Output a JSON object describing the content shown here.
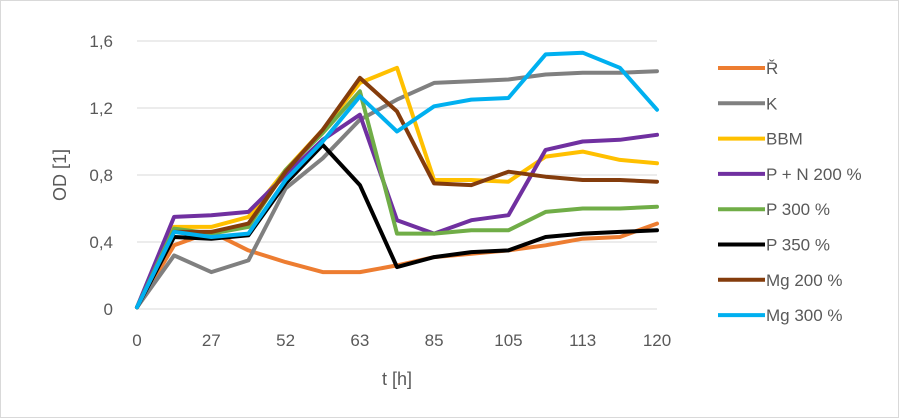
{
  "chart_data": {
    "type": "line",
    "title": "",
    "xlabel": "t [h]",
    "ylabel": "OD [1]",
    "ylim": [
      0,
      1.6
    ],
    "yticks": [
      "0",
      "0,4",
      "0,8",
      "1,2",
      "1,6"
    ],
    "x_tick_labels": [
      "0",
      "27",
      "52",
      "63",
      "85",
      "105",
      "113",
      "120"
    ],
    "grid": "horizontal",
    "legend_position": "right",
    "series": [
      {
        "name": "Ř",
        "color": "#ED7D31",
        "values": [
          0.01,
          0.38,
          0.46,
          0.35,
          0.28,
          0.22,
          0.22,
          0.26,
          0.31,
          0.33,
          0.35,
          0.38,
          0.42,
          0.43,
          0.51
        ]
      },
      {
        "name": "K",
        "color": "#808080",
        "values": [
          0.01,
          0.32,
          0.22,
          0.29,
          0.72,
          0.9,
          1.13,
          1.25,
          1.35,
          1.36,
          1.37,
          1.4,
          1.41,
          1.41,
          1.42
        ]
      },
      {
        "name": "BBM",
        "color": "#FFC000",
        "values": [
          0.01,
          0.49,
          0.49,
          0.55,
          0.83,
          1.07,
          1.35,
          1.44,
          0.77,
          0.77,
          0.76,
          0.91,
          0.94,
          0.89,
          0.87
        ]
      },
      {
        "name": "P + N 200 %",
        "color": "#7030A0",
        "values": [
          0.01,
          0.55,
          0.56,
          0.58,
          0.8,
          1.01,
          1.16,
          0.53,
          0.45,
          0.53,
          0.56,
          0.95,
          1.0,
          1.01,
          1.04
        ]
      },
      {
        "name": "P 300 %",
        "color": "#70AD47",
        "values": [
          0.01,
          0.48,
          0.45,
          0.49,
          0.83,
          1.05,
          1.3,
          0.45,
          0.45,
          0.47,
          0.47,
          0.58,
          0.6,
          0.6,
          0.61
        ]
      },
      {
        "name": "P 350 %",
        "color": "#000000",
        "values": [
          0.01,
          0.43,
          0.42,
          0.44,
          0.75,
          0.98,
          0.74,
          0.25,
          0.31,
          0.34,
          0.35,
          0.43,
          0.45,
          0.46,
          0.47
        ]
      },
      {
        "name": "Mg 200 %",
        "color": "#843C0C",
        "values": [
          0.01,
          0.46,
          0.46,
          0.51,
          0.82,
          1.07,
          1.38,
          1.18,
          0.75,
          0.74,
          0.82,
          0.79,
          0.77,
          0.77,
          0.76
        ]
      },
      {
        "name": "Mg 300 %",
        "color": "#00B0F0",
        "values": [
          0.01,
          0.46,
          0.43,
          0.45,
          0.77,
          1.0,
          1.27,
          1.06,
          1.21,
          1.25,
          1.26,
          1.52,
          1.53,
          1.44,
          1.19
        ]
      }
    ]
  }
}
